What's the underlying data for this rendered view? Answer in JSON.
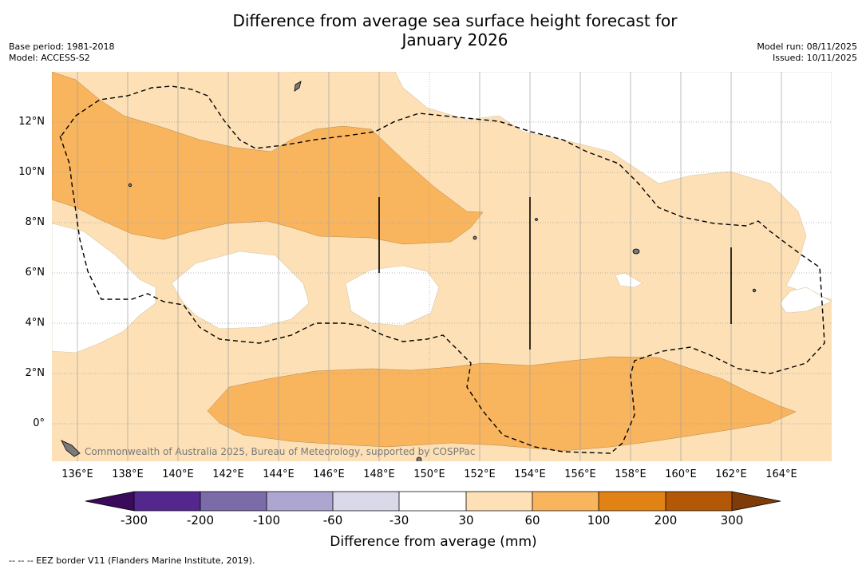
{
  "title": "Difference from average sea surface height forecast for January 2026",
  "title_line1": "Difference from average sea surface height forecast for",
  "title_line2": "January 2026",
  "meta": {
    "base_period": "Base period: 1981-2018",
    "model": "Model: ACCESS-S2",
    "model_run": "Model run: 08/11/2025",
    "issued": "Issued: 10/11/2025"
  },
  "map": {
    "lat_labels": [
      "12°N",
      "10°N",
      "8°N",
      "6°N",
      "4°N",
      "2°N",
      "0°"
    ],
    "lon_labels": [
      "136°E",
      "138°E",
      "140°E",
      "142°E",
      "144°E",
      "146°E",
      "148°E",
      "150°E",
      "152°E",
      "154°E",
      "156°E",
      "158°E",
      "160°E",
      "162°E",
      "164°E"
    ],
    "copyright": "Commonwealth of Australia 2025, Bureau of Meteorology, supported by COSPPac"
  },
  "colorbar": {
    "title": "Difference from average (mm)",
    "ticks": [
      "-300",
      "-200",
      "-100",
      "-60",
      "-30",
      "30",
      "60",
      "100",
      "200",
      "300"
    ],
    "colors": {
      "below_min": "#3b0a5a",
      "c1": "#54278f",
      "c2": "#7b6ba9",
      "c3": "#aca6d0",
      "c4": "#d9d9ea",
      "c5": "#ffffff",
      "c6": "#fde0b5",
      "c7": "#f9b45e",
      "c8": "#e08214",
      "c9": "#b35806",
      "above_max": "#7f3b08"
    }
  },
  "footnote": "--  --  -- EEZ border V11 (Flanders Marine Institute, 2019)."
}
